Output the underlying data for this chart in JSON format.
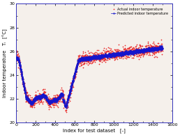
{
  "title": "",
  "xlabel": "Index for test dataset   [-]",
  "ylabel": "Indoor temperature   Tᵢ  [°C]",
  "ylim": [
    20,
    30
  ],
  "xlim": [
    0,
    1600
  ],
  "yticks": [
    20,
    22,
    24,
    26,
    28,
    30
  ],
  "xticks": [
    0,
    200,
    400,
    600,
    800,
    1000,
    1200,
    1400,
    1600
  ],
  "actual_color": "#e83030",
  "predicted_color": "#1515cc",
  "legend_actual": "Actual indoor temperature",
  "legend_predicted": "Predicted indoor temperature",
  "figsize": [
    2.58,
    1.94
  ],
  "dpi": 100,
  "bg_color": "#f5f0eb",
  "spine_color": "#3333bb"
}
